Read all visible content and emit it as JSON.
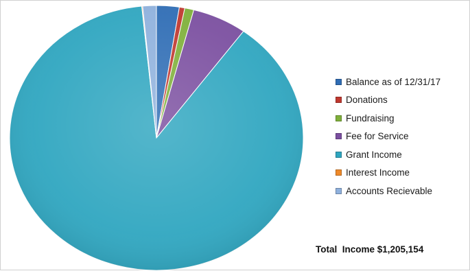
{
  "chart_data": {
    "type": "pie",
    "title": "",
    "categories": [
      "Balance as of 12/31/17",
      "Donations",
      "Fundraising",
      "Fee for Service",
      "Grant Income",
      "Interest Income",
      "Accounts Recievable"
    ],
    "values": [
      2.5,
      0.6,
      1.0,
      6.0,
      88.3,
      0.1,
      1.5
    ],
    "value_unit": "percent of total (estimated)",
    "colors": [
      "#2f6db5",
      "#c0382f",
      "#7fb03a",
      "#7b4fa0",
      "#2fa6c0",
      "#ef8a2a",
      "#8fb1dd"
    ],
    "legend_position": "right",
    "start": "12 o'clock, clockwise"
  },
  "annotation": {
    "total_income": "Total  Income $1,205,154"
  }
}
